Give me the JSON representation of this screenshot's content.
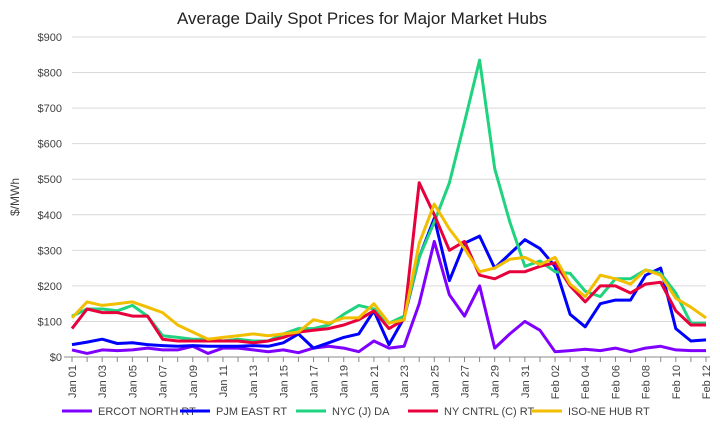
{
  "chart_data": {
    "type": "line",
    "title": "Average Daily Spot Prices for Major Market Hubs",
    "xlabel": "",
    "ylabel": "$/MWh",
    "ylim": [
      0,
      900
    ],
    "yticks": [
      "$0",
      "$100",
      "$200",
      "$300",
      "$400",
      "$500",
      "$600",
      "$700",
      "$800",
      "$900"
    ],
    "grid": true,
    "legend": "bottom",
    "x": [
      "Jan 01",
      "Jan 02",
      "Jan 03",
      "Jan 04",
      "Jan 05",
      "Jan 06",
      "Jan 07",
      "Jan 08",
      "Jan 09",
      "Jan 10",
      "Jan 11",
      "Jan 12",
      "Jan 13",
      "Jan 14",
      "Jan 15",
      "Jan 16",
      "Jan 17",
      "Jan 18",
      "Jan 19",
      "Jan 20",
      "Jan 21",
      "Jan 22",
      "Jan 23",
      "Jan 24",
      "Jan 25",
      "Jan 26",
      "Jan 27",
      "Jan 28",
      "Jan 29",
      "Jan 30",
      "Jan 31",
      "Feb 01",
      "Feb 02",
      "Feb 03",
      "Feb 04",
      "Feb 05",
      "Feb 06",
      "Feb 07",
      "Feb 08",
      "Feb 09",
      "Feb 10",
      "Feb 11",
      "Feb 12"
    ],
    "xtick_labels": [
      "Jan 01",
      "Jan 03",
      "Jan 05",
      "Jan 07",
      "Jan 09",
      "Jan 11",
      "Jan 13",
      "Jan 15",
      "Jan 17",
      "Jan 19",
      "Jan 21",
      "Jan 23",
      "Jan 25",
      "Jan 27",
      "Jan 29",
      "Jan 31",
      "Feb 02",
      "Feb 04",
      "Feb 06",
      "Feb 08",
      "Feb 10",
      "Feb 12"
    ],
    "series": [
      {
        "name": "ERCOT NORTH RT",
        "color": "#7F00FF",
        "values": [
          20,
          10,
          20,
          18,
          20,
          25,
          20,
          20,
          30,
          10,
          25,
          25,
          20,
          15,
          20,
          12,
          25,
          30,
          25,
          15,
          45,
          25,
          30,
          150,
          325,
          175,
          115,
          200,
          25,
          65,
          100,
          75,
          15,
          18,
          22,
          18,
          25,
          15,
          25,
          30,
          20,
          18,
          18
        ]
      },
      {
        "name": "PJM EAST RT",
        "color": "#0000FF",
        "values": [
          35,
          42,
          50,
          38,
          40,
          35,
          32,
          30,
          32,
          30,
          30,
          30,
          32,
          30,
          40,
          65,
          25,
          40,
          55,
          65,
          130,
          35,
          110,
          280,
          390,
          215,
          320,
          340,
          250,
          290,
          330,
          305,
          255,
          120,
          85,
          150,
          160,
          160,
          230,
          250,
          80,
          45,
          48
        ]
      },
      {
        "name": "NYC (J) DA",
        "color": "#1FD37F",
        "values": [
          115,
          135,
          135,
          130,
          145,
          115,
          60,
          55,
          50,
          50,
          45,
          50,
          45,
          45,
          65,
          80,
          80,
          90,
          120,
          145,
          135,
          95,
          115,
          280,
          380,
          490,
          660,
          835,
          530,
          380,
          255,
          270,
          240,
          235,
          185,
          170,
          220,
          220,
          245,
          235,
          180,
          95,
          95
        ]
      },
      {
        "name": "NY CNTRL (C) RT",
        "color": "#E8003C",
        "values": [
          80,
          135,
          125,
          125,
          115,
          115,
          50,
          45,
          45,
          45,
          45,
          45,
          40,
          45,
          55,
          70,
          75,
          80,
          90,
          105,
          130,
          80,
          105,
          490,
          400,
          300,
          325,
          230,
          220,
          240,
          240,
          255,
          265,
          200,
          155,
          200,
          200,
          180,
          205,
          210,
          130,
          90,
          90
        ]
      },
      {
        "name": "ISO-NE HUB RT",
        "color": "#F2BE00",
        "values": [
          110,
          155,
          145,
          150,
          155,
          140,
          125,
          90,
          70,
          50,
          55,
          60,
          65,
          60,
          65,
          70,
          105,
          95,
          110,
          110,
          150,
          95,
          105,
          320,
          430,
          360,
          305,
          240,
          250,
          275,
          280,
          260,
          280,
          205,
          170,
          230,
          220,
          205,
          245,
          230,
          165,
          140,
          110
        ]
      }
    ]
  }
}
